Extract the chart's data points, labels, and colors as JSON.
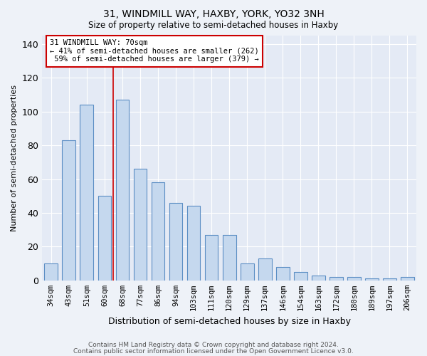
{
  "title1": "31, WINDMILL WAY, HAXBY, YORK, YO32 3NH",
  "title2": "Size of property relative to semi-detached houses in Haxby",
  "xlabel": "Distribution of semi-detached houses by size in Haxby",
  "ylabel": "Number of semi-detached properties",
  "categories": [
    "34sqm",
    "43sqm",
    "51sqm",
    "60sqm",
    "68sqm",
    "77sqm",
    "86sqm",
    "94sqm",
    "103sqm",
    "111sqm",
    "120sqm",
    "129sqm",
    "137sqm",
    "146sqm",
    "154sqm",
    "163sqm",
    "172sqm",
    "180sqm",
    "189sqm",
    "197sqm",
    "206sqm"
  ],
  "values": [
    10,
    83,
    104,
    50,
    107,
    66,
    58,
    46,
    44,
    27,
    27,
    10,
    13,
    8,
    5,
    3,
    2,
    2,
    1,
    1,
    2
  ],
  "bar_color": "#c5d8ee",
  "bar_edge_color": "#5b8ec4",
  "property_label": "31 WINDMILL WAY: 70sqm",
  "smaller_text": "← 41% of semi-detached houses are smaller (262)",
  "larger_text": " 59% of semi-detached houses are larger (379) →",
  "annotation_box_edge": "#cc0000",
  "vline_color": "#cc0000",
  "vline_x": 3.5,
  "ylim": [
    0,
    145
  ],
  "yticks": [
    0,
    20,
    40,
    60,
    80,
    100,
    120,
    140
  ],
  "footer1": "Contains HM Land Registry data © Crown copyright and database right 2024.",
  "footer2": "Contains public sector information licensed under the Open Government Licence v3.0.",
  "bg_color": "#eef2f8",
  "plot_bg_color": "#e4eaf5",
  "grid_color": "#ffffff",
  "bar_width": 0.75
}
